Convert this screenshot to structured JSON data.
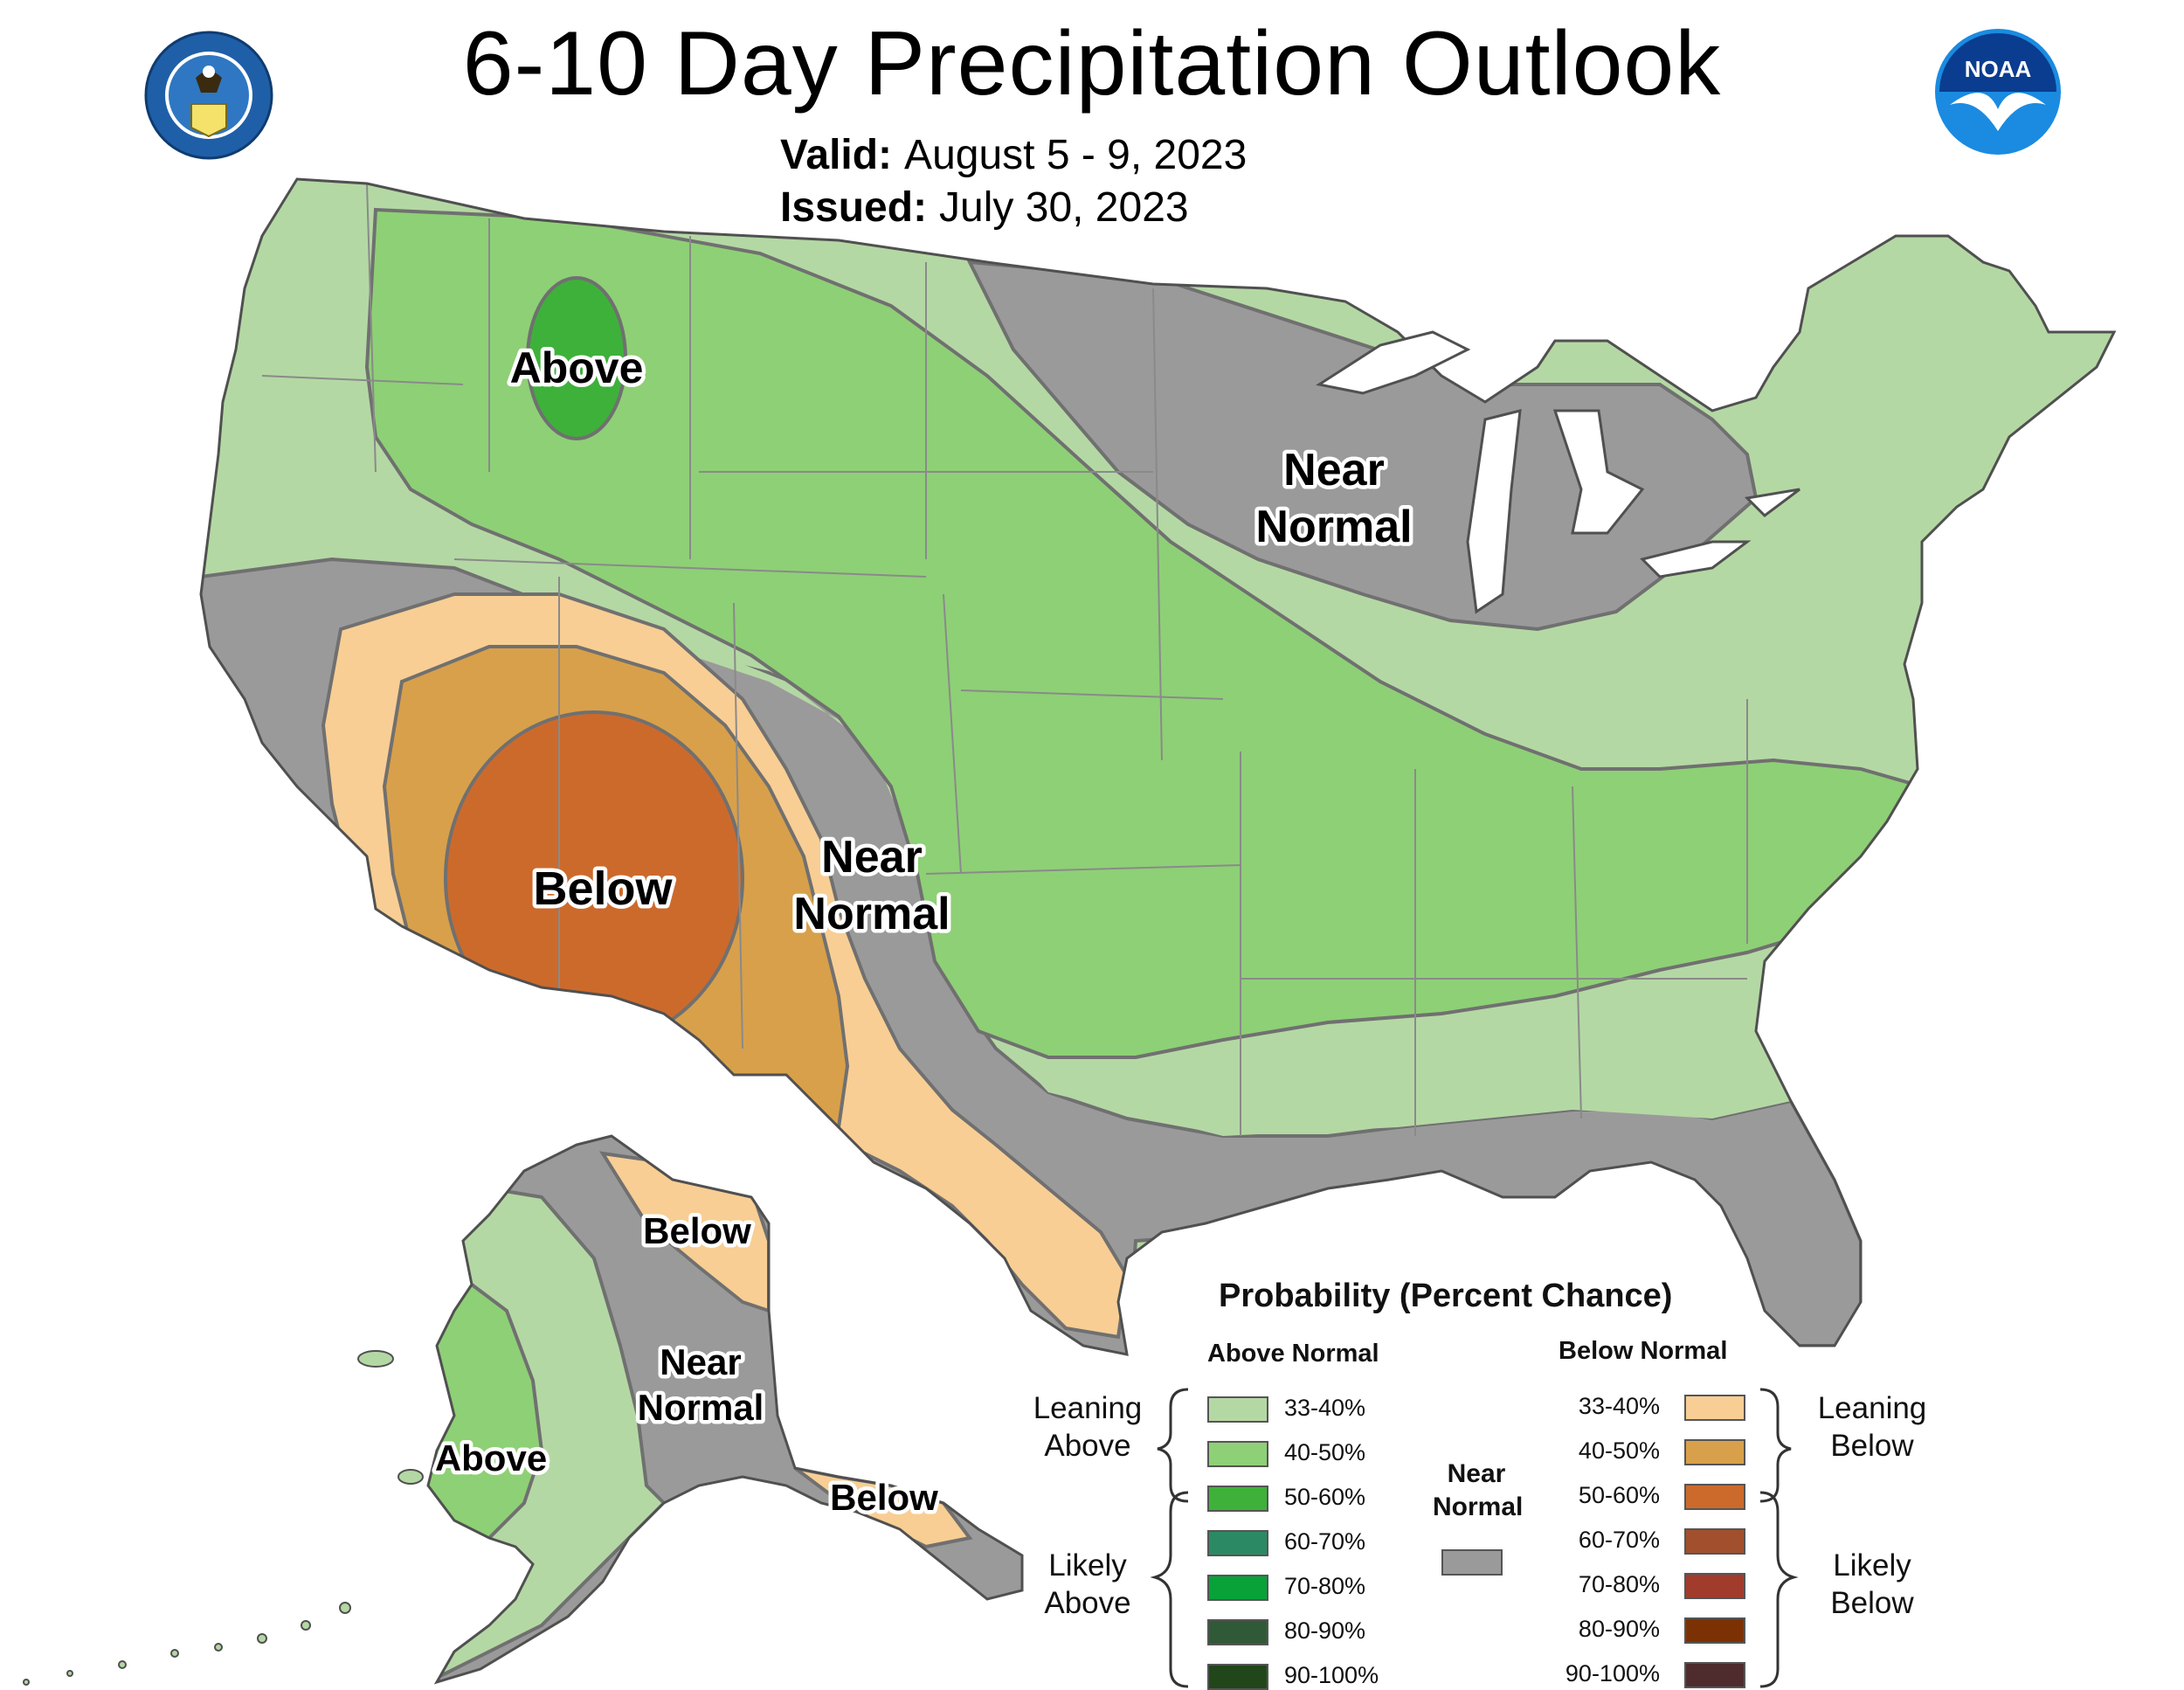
{
  "header": {
    "title": "6-10 Day Precipitation Outlook",
    "valid_label": "Valid:",
    "valid_value": "August 5 - 9, 2023",
    "issued_label": "Issued:",
    "issued_value": "July 30, 2023"
  },
  "logos": {
    "left_seal_text": "DEPARTMENT OF COMMERCE · UNITED STATES OF AMERICA",
    "right_logo_text": "NOAA"
  },
  "map_labels": {
    "above_nw": "Above",
    "near_normal_ne": [
      "Near",
      "Normal"
    ],
    "below_sw": "Below",
    "near_normal_sw": [
      "Near",
      "Normal"
    ],
    "ak_below": "Below",
    "ak_near_normal": [
      "Near",
      "Normal"
    ],
    "ak_above": "Above",
    "ak_below_se": "Below"
  },
  "legend": {
    "title": "Probability (Percent Chance)",
    "above_heading": "Above Normal",
    "below_heading": "Below Normal",
    "near_heading": [
      "Near",
      "Normal"
    ],
    "above_items": [
      {
        "label": "33-40%",
        "color": "#b4d8a4"
      },
      {
        "label": "40-50%",
        "color": "#8ed076"
      },
      {
        "label": "50-60%",
        "color": "#3eb13a"
      },
      {
        "label": "60-70%",
        "color": "#2b8a64"
      },
      {
        "label": "70-80%",
        "color": "#08a239"
      },
      {
        "label": "80-90%",
        "color": "#305a37"
      },
      {
        "label": "90-100%",
        "color": "#21461a"
      }
    ],
    "below_items": [
      {
        "label": "33-40%",
        "color": "#f8ce94"
      },
      {
        "label": "40-50%",
        "color": "#d8a04a"
      },
      {
        "label": "50-60%",
        "color": "#cc6a2c"
      },
      {
        "label": "60-70%",
        "color": "#a14f2c"
      },
      {
        "label": "70-80%",
        "color": "#a13b2c"
      },
      {
        "label": "80-90%",
        "color": "#7c3105"
      },
      {
        "label": "90-100%",
        "color": "#4e2c2e"
      }
    ],
    "near_color": "#9a9a9a",
    "groups": {
      "leaning_above": [
        "Leaning",
        "Above"
      ],
      "likely_above": [
        "Likely",
        "Above"
      ],
      "leaning_below": [
        "Leaning",
        "Below"
      ],
      "likely_below": [
        "Likely",
        "Below"
      ]
    }
  }
}
